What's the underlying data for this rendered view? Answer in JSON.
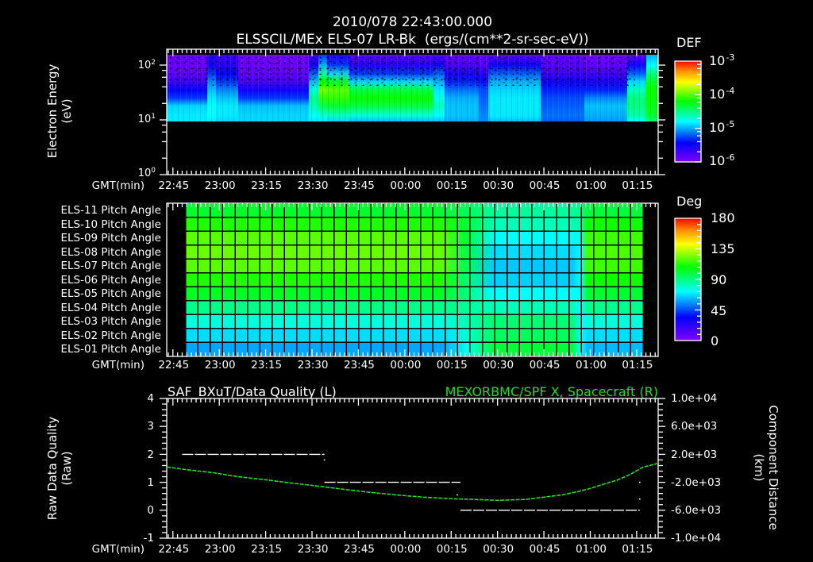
{
  "header": {
    "line1": "2010/078 22:43:00.000",
    "line2": "ELSSCIL/MEx ELS-07 LR-Bk  (ergs/(cm**2-sr-sec-eV))"
  },
  "time_axis": {
    "label": "GMT(min)",
    "start": "22:43",
    "end": "01:22",
    "ticks": [
      "22:45",
      "23:00",
      "23:15",
      "23:30",
      "23:45",
      "00:00",
      "00:15",
      "00:30",
      "00:45",
      "01:00",
      "01:15"
    ]
  },
  "panels": {
    "energy": {
      "ylabel_line1": "Electron Energy",
      "ylabel_line2": "(eV)",
      "yticks": [
        {
          "base": "10",
          "exp": "2"
        },
        {
          "base": "10",
          "exp": "1"
        },
        {
          "base": "10",
          "exp": "0"
        }
      ],
      "colorbar": {
        "title": "DEF",
        "labels": [
          {
            "base": "10",
            "exp": "-3"
          },
          {
            "base": "10",
            "exp": "-4"
          },
          {
            "base": "10",
            "exp": "-5"
          },
          {
            "base": "10",
            "exp": "-6"
          }
        ]
      }
    },
    "pitch": {
      "rows": [
        "ELS-11 Pitch Angle",
        "ELS-10 Pitch Angle",
        "ELS-09 Pitch Angle",
        "ELS-08 Pitch Angle",
        "ELS-07 Pitch Angle",
        "ELS-06 Pitch Angle",
        "ELS-05 Pitch Angle",
        "ELS-04 Pitch Angle",
        "ELS-03 Pitch Angle",
        "ELS-02 Pitch Angle",
        "ELS-01 Pitch Angle"
      ],
      "colorbar": {
        "title": "Deg",
        "labels": [
          "180",
          "135",
          "90",
          "45",
          "0"
        ]
      }
    },
    "quality": {
      "title_left": "SAF_BXuT/Data Quality (L)",
      "title_right": "MEXORBMC/SPF X, Spacecraft (R)",
      "ylabel_left_line1": "Raw Data Quality",
      "ylabel_left_line2": "(Raw)",
      "ylabel_right_line1": "Component Distance",
      "ylabel_right_line2": "(km)",
      "yticks_left": [
        "4",
        "3",
        "2",
        "1",
        "0",
        "-1"
      ],
      "yticks_right": [
        "1.0e+04",
        "6.0e+03",
        "2.0e+03",
        "-2.0e+03",
        "-6.0e+03",
        "-1.0e+04"
      ]
    }
  },
  "colors": {
    "background": "#000000",
    "foreground": "#ffffff",
    "spacecraft_series": "#22dd22",
    "quality_series": "#ffffff",
    "colormap": [
      [
        0,
        "#8000ff"
      ],
      [
        0.19,
        "#0000ff"
      ],
      [
        0.4,
        "#00ffff"
      ],
      [
        0.6,
        "#00ff00"
      ],
      [
        0.79,
        "#ffff00"
      ],
      [
        0.9,
        "#ff9000"
      ],
      [
        1,
        "#ff0000"
      ]
    ]
  },
  "chart_data": [
    {
      "type": "heatmap",
      "title": "ELSSCIL/MEx ELS-07 LR-Bk  (ergs/(cm**2-sr-sec-eV))",
      "xlabel": "GMT(min)",
      "ylabel": "Electron Energy (eV)",
      "yscale": "log",
      "ylim": [
        1,
        200
      ],
      "colorbar_label": "DEF",
      "colorbar_log_range": [
        -6,
        -3
      ],
      "energy_grid_eV": [
        155,
        100,
        70,
        50,
        35,
        25,
        18,
        12,
        9.4
      ],
      "note": "no data below ~10 eV (black)",
      "segments": [
        {
          "from": "22:43",
          "to": "22:56",
          "log10_def": [
            -5.9,
            -5.9,
            -5.85,
            -5.7,
            -5.45,
            -5.3,
            -4.9,
            -4.85,
            -4.85
          ]
        },
        {
          "from": "22:56",
          "to": "22:59",
          "log10_def": [
            -5.6,
            -5.5,
            -5.3,
            -5.1,
            -4.95,
            -4.85,
            -4.8,
            -4.8,
            -4.85
          ]
        },
        {
          "from": "22:59",
          "to": "23:06",
          "log10_def": [
            -5.7,
            -5.6,
            -5.45,
            -5.3,
            -5.1,
            -4.95,
            -4.85,
            -4.85,
            -4.9
          ]
        },
        {
          "from": "23:06",
          "to": "23:29",
          "log10_def": [
            -5.95,
            -5.9,
            -5.85,
            -5.75,
            -5.5,
            -5.3,
            -4.95,
            -4.9,
            -4.9
          ]
        },
        {
          "from": "23:29",
          "to": "23:32",
          "log10_def": [
            -5.7,
            -5.5,
            -5.2,
            -4.95,
            -4.7,
            -4.55,
            -4.6,
            -4.8,
            -4.85
          ]
        },
        {
          "from": "23:32",
          "to": "23:35",
          "log10_def": [
            -5.3,
            -5.0,
            -4.6,
            -4.2,
            -3.95,
            -4.1,
            -4.4,
            -4.7,
            -4.85
          ]
        },
        {
          "from": "23:35",
          "to": "23:42",
          "log10_def": [
            -5.6,
            -5.3,
            -4.9,
            -4.3,
            -4.0,
            -4.1,
            -4.3,
            -4.65,
            -4.9
          ]
        },
        {
          "from": "23:42",
          "to": "00:09",
          "log10_def": [
            -5.85,
            -5.6,
            -5.3,
            -4.9,
            -4.35,
            -4.2,
            -4.35,
            -4.7,
            -4.95
          ]
        },
        {
          "from": "00:09",
          "to": "00:13",
          "log10_def": [
            -5.8,
            -5.5,
            -5.2,
            -5.0,
            -4.85,
            -4.75,
            -4.65,
            -4.8,
            -4.95
          ]
        },
        {
          "from": "00:13",
          "to": "00:24",
          "log10_def": [
            -5.9,
            -5.75,
            -5.55,
            -5.35,
            -5.15,
            -5.0,
            -4.95,
            -4.95,
            -5.0
          ]
        },
        {
          "from": "00:24",
          "to": "00:27",
          "log10_def": [
            -5.9,
            -5.8,
            -5.6,
            -5.4,
            -5.25,
            -5.2,
            -5.15,
            -5.1,
            -5.1
          ]
        },
        {
          "from": "00:27",
          "to": "00:44",
          "log10_def": [
            -5.85,
            -5.5,
            -5.2,
            -5.0,
            -4.9,
            -4.85,
            -4.85,
            -4.85,
            -4.95
          ]
        },
        {
          "from": "00:44",
          "to": "00:58",
          "log10_def": [
            -5.9,
            -5.8,
            -5.7,
            -5.5,
            -5.35,
            -5.25,
            -5.2,
            -5.15,
            -5.2
          ]
        },
        {
          "from": "00:58",
          "to": "01:12",
          "log10_def": [
            -5.95,
            -5.85,
            -5.7,
            -5.55,
            -5.35,
            -5.1,
            -4.95,
            -5.0,
            -5.05
          ]
        },
        {
          "from": "01:12",
          "to": "01:18",
          "log10_def": [
            -5.85,
            -5.5,
            -5.2,
            -4.9,
            -4.65,
            -4.5,
            -4.5,
            -4.6,
            -4.8
          ]
        },
        {
          "from": "01:18",
          "to": "01:22",
          "log10_def": [
            -5.0,
            -4.8,
            -4.5,
            -4.3,
            -4.2,
            -4.2,
            -4.25,
            -4.3,
            -4.5
          ]
        }
      ]
    },
    {
      "type": "heatmap",
      "title": "Pitch Angle (ELS-01 .. ELS-11)",
      "xlabel": "GMT(min)",
      "colorbar_label": "Deg",
      "colorbar_range": [
        0,
        180
      ],
      "start": "22:49",
      "end": "01:17",
      "bin_minutes": 4,
      "row_order": "ELS-11 (top) to ELS-01 (bottom)",
      "bands": [
        {
          "t": "22:49",
          "deg": [
            102,
            112,
            120,
            122,
            120,
            112,
            103,
            89,
            77,
            67,
            59
          ]
        },
        {
          "t": "00:12",
          "deg": [
            102,
            112,
            120,
            122,
            120,
            112,
            103,
            89,
            77,
            67,
            59
          ]
        },
        {
          "t": "00:20",
          "deg": [
            96,
            100,
            100,
            98,
            96,
            92,
            90,
            86,
            82,
            78,
            74
          ]
        },
        {
          "t": "00:29",
          "deg": [
            86,
            82,
            73,
            67,
            64,
            65,
            72,
            82,
            92,
            95,
            100
          ]
        },
        {
          "t": "00:54",
          "deg": [
            86,
            82,
            73,
            67,
            64,
            65,
            72,
            82,
            92,
            95,
            100
          ]
        },
        {
          "t": "00:57",
          "deg": [
            90,
            85,
            75,
            72,
            72,
            72,
            72,
            72,
            72,
            72,
            72
          ]
        },
        {
          "t": "00:59",
          "deg": [
            100,
            110,
            116,
            118,
            116,
            110,
            101,
            88,
            77,
            67,
            62
          ]
        },
        {
          "t": "01:17",
          "deg": [
            100,
            110,
            116,
            118,
            116,
            110,
            101,
            88,
            77,
            67,
            62
          ]
        }
      ]
    },
    {
      "type": "line",
      "title_left": "SAF_BXuT/Data Quality (L)",
      "title_right": "MEXORBMC/SPF X, Spacecraft (R)",
      "xlabel": "GMT(min)",
      "ylabel_left": "Raw Data Quality (Raw)",
      "ylabel_right": "Component Distance (km)",
      "ylim_left": [
        -1,
        4
      ],
      "ylim_right": [
        -10000,
        10000
      ],
      "series": [
        {
          "name": "SAF_BXuT/Data Quality",
          "axis": "left",
          "color": "#ffffff",
          "steps": [
            {
              "from": "22:48",
              "to": "23:34",
              "value": 2
            },
            {
              "from": "23:34",
              "to": "00:18",
              "value": 1
            },
            {
              "from": "00:18",
              "to": "01:16",
              "value": 0
            }
          ],
          "points": [
            {
              "t": "23:34",
              "value": 1.8
            },
            {
              "t": "00:17",
              "value": 0.55
            },
            {
              "t": "01:16",
              "value": 1.0
            },
            {
              "t": "01:16",
              "value": 0.4
            }
          ]
        },
        {
          "name": "MEXORBMC/SPF X, Spacecraft",
          "axis": "right",
          "color": "#22dd22",
          "points": [
            {
              "t": "22:43",
              "value": 200
            },
            {
              "t": "22:49",
              "value": -170
            },
            {
              "t": "22:58",
              "value": -620
            },
            {
              "t": "23:06",
              "value": -1190
            },
            {
              "t": "23:15",
              "value": -1640
            },
            {
              "t": "23:23",
              "value": -2090
            },
            {
              "t": "23:32",
              "value": -2540
            },
            {
              "t": "23:40",
              "value": -2990
            },
            {
              "t": "23:49",
              "value": -3450
            },
            {
              "t": "23:57",
              "value": -3790
            },
            {
              "t": "00:06",
              "value": -4120
            },
            {
              "t": "00:15",
              "value": -4350
            },
            {
              "t": "00:23",
              "value": -4460
            },
            {
              "t": "00:30",
              "value": -4580
            },
            {
              "t": "00:39",
              "value": -4460
            },
            {
              "t": "00:47",
              "value": -4010
            },
            {
              "t": "00:51",
              "value": -3790
            },
            {
              "t": "00:56",
              "value": -3330
            },
            {
              "t": "01:00",
              "value": -2880
            },
            {
              "t": "01:04",
              "value": -2320
            },
            {
              "t": "01:09",
              "value": -1640
            },
            {
              "t": "01:13",
              "value": -850
            },
            {
              "t": "01:17",
              "value": 170
            },
            {
              "t": "01:22",
              "value": 730
            }
          ]
        }
      ]
    }
  ]
}
